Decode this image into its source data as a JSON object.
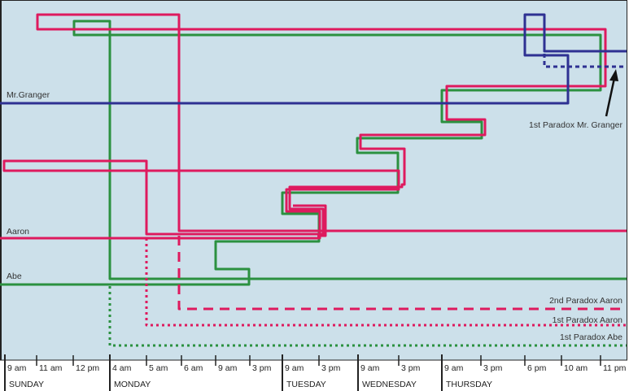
{
  "colors": {
    "background": "#cce0ea",
    "granger": "#2e3192",
    "aaron": "#de1a5e",
    "abe": "#2b9140",
    "axis": "#222222"
  },
  "line_labels": {
    "granger": "Mr.Granger",
    "aaron": "Aaron",
    "abe": "Abe"
  },
  "annotations": {
    "paradox2_aaron": "2nd Paradox Aaron",
    "paradox1_aaron": "1st Paradox Aaron",
    "paradox1_abe": "1st Paradox Abe",
    "paradox1_granger": "1st Paradox Mr. Granger"
  },
  "axis": {
    "ticks": [
      "9 am",
      "11 am",
      "12 pm",
      "4 am",
      "5 am",
      "6 am",
      "9 am",
      "3 pm",
      "9 am",
      "3 pm",
      "9 am",
      "3 pm",
      "9 am",
      "3 pm",
      "6 pm",
      "10 am",
      "11 pm"
    ],
    "days": [
      "SUNDAY",
      "MONDAY",
      "TUESDAY",
      "WEDNESDAY",
      "THURSDAY"
    ]
  }
}
